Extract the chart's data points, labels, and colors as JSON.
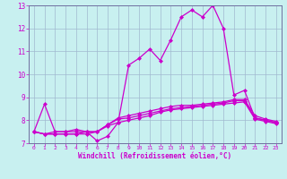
{
  "title": "",
  "xlabel": "Windchill (Refroidissement éolien,°C)",
  "ylabel": "",
  "bg_color": "#c8f0f0",
  "grid_color": "#a0b8d0",
  "line_color": "#cc00cc",
  "marker": "D",
  "markersize": 2.0,
  "linewidth": 0.9,
  "xlim": [
    -0.5,
    23.5
  ],
  "ylim": [
    7,
    13
  ],
  "yticks": [
    7,
    8,
    9,
    10,
    11,
    12,
    13
  ],
  "xticks": [
    0,
    1,
    2,
    3,
    4,
    5,
    6,
    7,
    8,
    9,
    10,
    11,
    12,
    13,
    14,
    15,
    16,
    17,
    18,
    19,
    20,
    21,
    22,
    23
  ],
  "line1_x": [
    0,
    1,
    2,
    3,
    4,
    5,
    6,
    7,
    8,
    9,
    10,
    11,
    12,
    13,
    14,
    15,
    16,
    17,
    18,
    19,
    20,
    21,
    22,
    23
  ],
  "line1_y": [
    7.5,
    8.7,
    7.5,
    7.5,
    7.6,
    7.5,
    7.1,
    7.3,
    7.9,
    10.4,
    10.7,
    11.1,
    10.6,
    11.5,
    12.5,
    12.8,
    12.5,
    13.0,
    12.0,
    9.1,
    9.3,
    8.1,
    8.0,
    7.9
  ],
  "line2_x": [
    0,
    1,
    2,
    3,
    4,
    5,
    6,
    7,
    8,
    9,
    10,
    11,
    12,
    13,
    14,
    15,
    16,
    17,
    18,
    19,
    20,
    21,
    22,
    23
  ],
  "line2_y": [
    7.5,
    7.4,
    7.4,
    7.4,
    7.4,
    7.5,
    7.5,
    7.8,
    8.05,
    8.1,
    8.2,
    8.3,
    8.4,
    8.5,
    8.55,
    8.6,
    8.65,
    8.7,
    8.75,
    8.85,
    8.85,
    8.1,
    8.0,
    7.9
  ],
  "line3_x": [
    0,
    1,
    2,
    3,
    4,
    5,
    6,
    7,
    8,
    9,
    10,
    11,
    12,
    13,
    14,
    15,
    16,
    17,
    18,
    19,
    20,
    21,
    22,
    23
  ],
  "line3_y": [
    7.5,
    7.4,
    7.5,
    7.5,
    7.5,
    7.5,
    7.5,
    7.8,
    8.1,
    8.2,
    8.3,
    8.4,
    8.5,
    8.6,
    8.65,
    8.65,
    8.7,
    8.75,
    8.8,
    8.9,
    8.9,
    8.2,
    8.05,
    7.95
  ],
  "line4_x": [
    0,
    1,
    2,
    3,
    4,
    5,
    6,
    7,
    8,
    9,
    10,
    11,
    12,
    13,
    14,
    15,
    16,
    17,
    18,
    19,
    20,
    21,
    22,
    23
  ],
  "line4_y": [
    7.5,
    7.4,
    7.4,
    7.4,
    7.4,
    7.4,
    7.5,
    7.75,
    7.9,
    8.0,
    8.1,
    8.2,
    8.35,
    8.45,
    8.5,
    8.55,
    8.6,
    8.65,
    8.7,
    8.75,
    8.8,
    8.05,
    7.95,
    7.85
  ],
  "tick_fontsize": 5.5,
  "xlabel_fontsize": 5.5,
  "spine_color": "#7070a0"
}
